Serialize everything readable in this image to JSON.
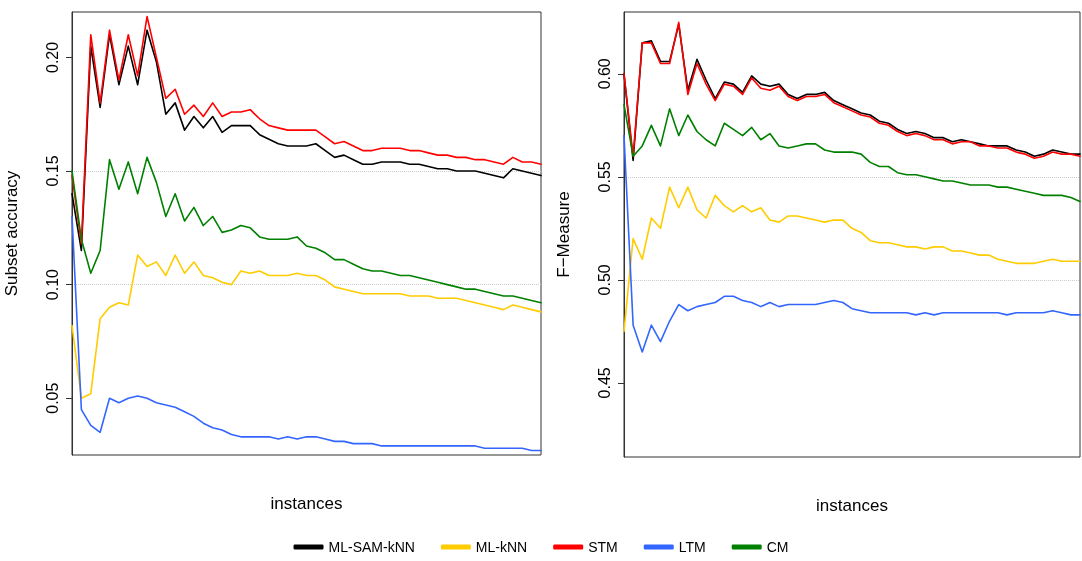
{
  "chart_data": [
    {
      "type": "line",
      "xlabel": "instances",
      "ylabel": "Subset accuracy",
      "categories": [
        null,
        null,
        null,
        null,
        null,
        null,
        null,
        null,
        null,
        null,
        null,
        null,
        null,
        null,
        null,
        null,
        null,
        null,
        null,
        null,
        null,
        null,
        null,
        null,
        null,
        null,
        null,
        null,
        null,
        null,
        null,
        null,
        null,
        null,
        null,
        null,
        null,
        null,
        null,
        null,
        null,
        null,
        null,
        null,
        null,
        null,
        null,
        null,
        null,
        null,
        null
      ],
      "ylim": [
        0.025,
        0.22
      ],
      "yticks": [
        {
          "value": 0.05,
          "label": "0.05"
        },
        {
          "value": 0.1,
          "label": "0.10"
        },
        {
          "value": 0.15,
          "label": "0.15"
        },
        {
          "value": 0.2,
          "label": "0.20"
        }
      ],
      "grid": "y",
      "legend": "bottom",
      "tick_labels": "y",
      "marker": "none",
      "line_style": "solid",
      "series": [
        {
          "name": "ML-SAM-kNN",
          "color": "#000000",
          "values": [
            0.14,
            0.115,
            0.205,
            0.178,
            0.21,
            0.188,
            0.205,
            0.188,
            0.212,
            0.198,
            0.175,
            0.18,
            0.168,
            0.174,
            0.169,
            0.174,
            0.167,
            0.17,
            0.17,
            0.17,
            0.166,
            0.164,
            0.162,
            0.161,
            0.161,
            0.161,
            0.162,
            0.159,
            0.156,
            0.157,
            0.155,
            0.153,
            0.153,
            0.154,
            0.154,
            0.154,
            0.153,
            0.153,
            0.152,
            0.151,
            0.151,
            0.15,
            0.15,
            0.15,
            0.149,
            0.148,
            0.147,
            0.151,
            0.15,
            0.149,
            0.148
          ]
        },
        {
          "name": "ML-kNN",
          "color": "#ffcc00",
          "values": [
            0.082,
            0.05,
            0.052,
            0.085,
            0.09,
            0.092,
            0.091,
            0.113,
            0.108,
            0.11,
            0.104,
            0.113,
            0.105,
            0.11,
            0.104,
            0.103,
            0.101,
            0.1,
            0.106,
            0.105,
            0.106,
            0.104,
            0.104,
            0.104,
            0.105,
            0.104,
            0.104,
            0.102,
            0.099,
            0.098,
            0.097,
            0.096,
            0.096,
            0.096,
            0.096,
            0.096,
            0.095,
            0.095,
            0.095,
            0.094,
            0.094,
            0.094,
            0.093,
            0.092,
            0.091,
            0.09,
            0.089,
            0.091,
            0.09,
            0.089,
            0.088
          ]
        },
        {
          "name": "STM",
          "color": "#ff0000",
          "values": [
            0.148,
            0.118,
            0.21,
            0.18,
            0.212,
            0.19,
            0.21,
            0.192,
            0.218,
            0.2,
            0.182,
            0.186,
            0.175,
            0.179,
            0.174,
            0.18,
            0.174,
            0.176,
            0.176,
            0.177,
            0.173,
            0.17,
            0.169,
            0.168,
            0.168,
            0.168,
            0.168,
            0.165,
            0.162,
            0.163,
            0.161,
            0.159,
            0.159,
            0.16,
            0.16,
            0.16,
            0.159,
            0.159,
            0.158,
            0.157,
            0.157,
            0.156,
            0.156,
            0.155,
            0.155,
            0.154,
            0.153,
            0.156,
            0.154,
            0.154,
            0.153
          ]
        },
        {
          "name": "LTM",
          "color": "#3366ff",
          "values": [
            0.13,
            0.045,
            0.038,
            0.035,
            0.05,
            0.048,
            0.05,
            0.051,
            0.05,
            0.048,
            0.047,
            0.046,
            0.044,
            0.042,
            0.039,
            0.037,
            0.036,
            0.034,
            0.033,
            0.033,
            0.033,
            0.033,
            0.032,
            0.033,
            0.032,
            0.033,
            0.033,
            0.032,
            0.031,
            0.031,
            0.03,
            0.03,
            0.03,
            0.029,
            0.029,
            0.029,
            0.029,
            0.029,
            0.029,
            0.029,
            0.029,
            0.029,
            0.029,
            0.029,
            0.028,
            0.028,
            0.028,
            0.028,
            0.028,
            0.027,
            0.027
          ]
        },
        {
          "name": "CM",
          "color": "#008000",
          "values": [
            0.15,
            0.12,
            0.105,
            0.115,
            0.155,
            0.142,
            0.154,
            0.14,
            0.156,
            0.145,
            0.13,
            0.14,
            0.128,
            0.134,
            0.126,
            0.13,
            0.123,
            0.124,
            0.126,
            0.125,
            0.121,
            0.12,
            0.12,
            0.12,
            0.121,
            0.117,
            0.116,
            0.114,
            0.111,
            0.111,
            0.109,
            0.107,
            0.106,
            0.106,
            0.105,
            0.104,
            0.104,
            0.103,
            0.102,
            0.101,
            0.1,
            0.099,
            0.098,
            0.098,
            0.097,
            0.096,
            0.095,
            0.095,
            0.094,
            0.093,
            0.092
          ]
        }
      ]
    },
    {
      "type": "line",
      "xlabel": "instances",
      "ylabel": "F−Measure",
      "categories": [
        null,
        null,
        null,
        null,
        null,
        null,
        null,
        null,
        null,
        null,
        null,
        null,
        null,
        null,
        null,
        null,
        null,
        null,
        null,
        null,
        null,
        null,
        null,
        null,
        null,
        null,
        null,
        null,
        null,
        null,
        null,
        null,
        null,
        null,
        null,
        null,
        null,
        null,
        null,
        null,
        null,
        null,
        null,
        null,
        null,
        null,
        null,
        null,
        null,
        null,
        null
      ],
      "ylim": [
        0.414,
        0.63
      ],
      "yticks": [
        {
          "value": 0.45,
          "label": "0.45"
        },
        {
          "value": 0.5,
          "label": "0.50"
        },
        {
          "value": 0.55,
          "label": "0.55"
        },
        {
          "value": 0.6,
          "label": "0.60"
        }
      ],
      "grid": "y",
      "tick_labels": "y",
      "marker": "none",
      "line_style": "solid",
      "series": [
        {
          "color": "#000000",
          "values": [
            0.6,
            0.558,
            0.615,
            0.616,
            0.606,
            0.606,
            0.624,
            0.592,
            0.607,
            0.597,
            0.588,
            0.596,
            0.595,
            0.591,
            0.599,
            0.595,
            0.594,
            0.595,
            0.59,
            0.588,
            0.59,
            0.59,
            0.591,
            0.587,
            0.585,
            0.583,
            0.581,
            0.58,
            0.577,
            0.576,
            0.573,
            0.571,
            0.572,
            0.571,
            0.569,
            0.569,
            0.567,
            0.568,
            0.567,
            0.566,
            0.565,
            0.565,
            0.565,
            0.563,
            0.562,
            0.56,
            0.561,
            0.563,
            0.562,
            0.561,
            0.561
          ]
        },
        {
          "color": "#ffcc00",
          "values": [
            0.475,
            0.52,
            0.51,
            0.53,
            0.525,
            0.545,
            0.535,
            0.545,
            0.534,
            0.53,
            0.541,
            0.536,
            0.533,
            0.536,
            0.533,
            0.535,
            0.529,
            0.528,
            0.531,
            0.531,
            0.53,
            0.529,
            0.528,
            0.529,
            0.529,
            0.525,
            0.523,
            0.519,
            0.518,
            0.518,
            0.517,
            0.516,
            0.516,
            0.515,
            0.516,
            0.516,
            0.514,
            0.514,
            0.513,
            0.512,
            0.512,
            0.51,
            0.509,
            0.508,
            0.508,
            0.508,
            0.509,
            0.51,
            0.509,
            0.509,
            0.509
          ]
        },
        {
          "color": "#ff0000",
          "values": [
            0.6,
            0.56,
            0.615,
            0.615,
            0.605,
            0.605,
            0.625,
            0.59,
            0.605,
            0.595,
            0.587,
            0.595,
            0.594,
            0.59,
            0.598,
            0.593,
            0.592,
            0.594,
            0.589,
            0.587,
            0.589,
            0.589,
            0.59,
            0.586,
            0.584,
            0.582,
            0.58,
            0.579,
            0.576,
            0.575,
            0.572,
            0.57,
            0.571,
            0.57,
            0.568,
            0.568,
            0.566,
            0.567,
            0.567,
            0.565,
            0.565,
            0.564,
            0.564,
            0.562,
            0.561,
            0.559,
            0.56,
            0.562,
            0.561,
            0.561,
            0.56
          ]
        },
        {
          "color": "#3366ff",
          "values": [
            0.57,
            0.478,
            0.465,
            0.478,
            0.47,
            0.48,
            0.488,
            0.485,
            0.487,
            0.488,
            0.489,
            0.492,
            0.492,
            0.49,
            0.489,
            0.487,
            0.489,
            0.487,
            0.488,
            0.488,
            0.488,
            0.488,
            0.489,
            0.49,
            0.489,
            0.486,
            0.485,
            0.484,
            0.484,
            0.484,
            0.484,
            0.484,
            0.483,
            0.484,
            0.483,
            0.484,
            0.484,
            0.484,
            0.484,
            0.484,
            0.484,
            0.484,
            0.483,
            0.484,
            0.484,
            0.484,
            0.484,
            0.485,
            0.484,
            0.483,
            0.483
          ]
        },
        {
          "color": "#008000",
          "values": [
            0.585,
            0.56,
            0.565,
            0.575,
            0.565,
            0.583,
            0.57,
            0.58,
            0.572,
            0.568,
            0.565,
            0.576,
            0.573,
            0.57,
            0.574,
            0.568,
            0.571,
            0.565,
            0.564,
            0.565,
            0.566,
            0.566,
            0.563,
            0.562,
            0.562,
            0.562,
            0.561,
            0.557,
            0.555,
            0.555,
            0.552,
            0.551,
            0.551,
            0.55,
            0.549,
            0.548,
            0.548,
            0.547,
            0.546,
            0.546,
            0.546,
            0.545,
            0.545,
            0.544,
            0.543,
            0.542,
            0.541,
            0.541,
            0.541,
            0.54,
            0.538
          ]
        }
      ]
    }
  ]
}
